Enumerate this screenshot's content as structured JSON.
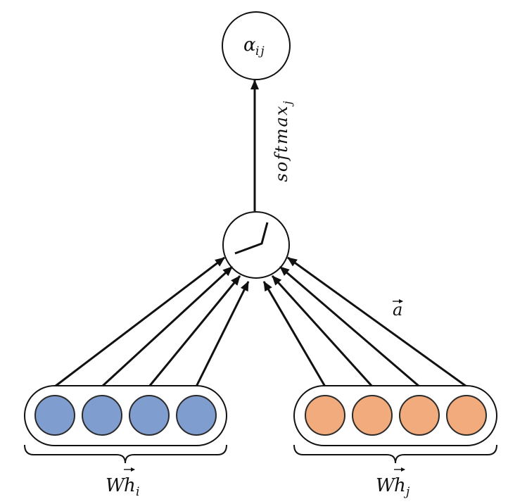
{
  "diagram": {
    "output_node": {
      "symbol": "α",
      "subscript": "ij"
    },
    "softmax_edge": {
      "label": "softmax",
      "subscript": "j"
    },
    "attention_vector": {
      "label": "a"
    },
    "activation_node": {
      "icon": "leaky-relu-icon"
    },
    "groups": [
      {
        "weight": "W",
        "vector": "h",
        "subscript": "i",
        "color": "#809dd0"
      },
      {
        "weight": "W",
        "vector": "h",
        "subscript": "j",
        "color": "#f2ab7c"
      }
    ]
  }
}
